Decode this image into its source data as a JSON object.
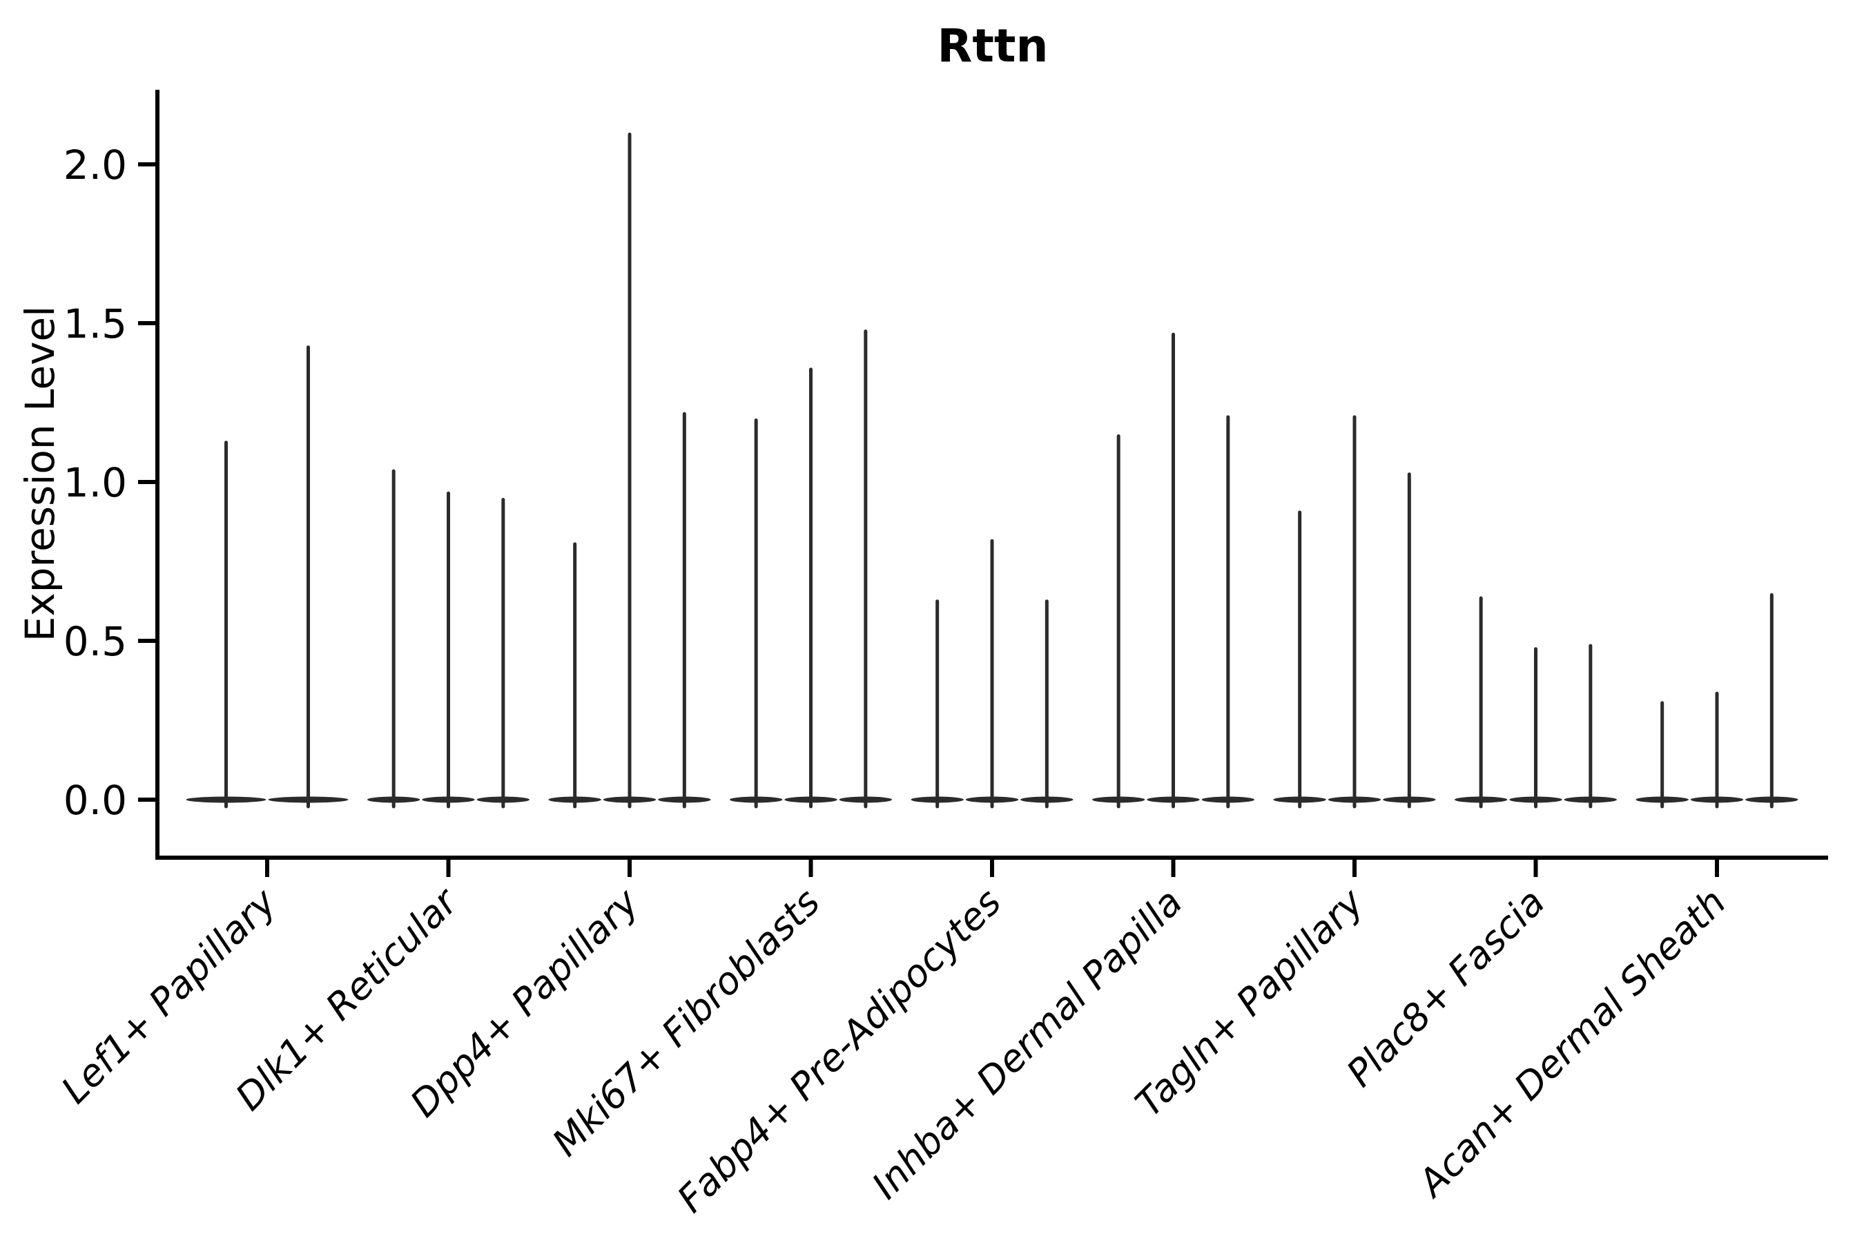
{
  "page": {
    "background": "#ffffff"
  },
  "chart_data": {
    "type": "violin",
    "title": "Rttn",
    "ylabel": "Expression Level",
    "xlabel": "",
    "ylim": [
      0,
      2.23
    ],
    "yticks": [
      0.0,
      0.5,
      1.0,
      1.5,
      2.0
    ],
    "ytick_labels": [
      "0.0",
      "0.5",
      "1.0",
      "1.5",
      "2.0"
    ],
    "grid": false,
    "legend": "none",
    "categories": [
      "Lef1+ Papillary",
      "Dlk1+ Reticular",
      "Dpp4+ Papillary",
      "Mki67+ Fibroblasts",
      "Fabp4+ Pre-Adipocytes",
      "Inhba+ Dermal Papilla",
      "Tagln+ Papillary",
      "Plac8+ Fascia",
      "Acan+ Dermal Sheath"
    ],
    "violin_maxima": [
      [
        1.13,
        1.43
      ],
      [
        1.04,
        0.97,
        0.95
      ],
      [
        0.81,
        2.1,
        1.22
      ],
      [
        1.2,
        1.36,
        1.48
      ],
      [
        0.63,
        0.82,
        0.63
      ],
      [
        1.15,
        1.47,
        1.21
      ],
      [
        0.91,
        1.21,
        1.03
      ],
      [
        0.64,
        0.48,
        0.49
      ],
      [
        0.31,
        0.34,
        0.65
      ]
    ],
    "description": "Each category shows 2-3 thin black violins collapsed at 0 with a narrow spike up to its maximum expression value.",
    "colors": {
      "violin": "#2b2b2b",
      "axis": "#000000",
      "text": "#000000"
    }
  }
}
